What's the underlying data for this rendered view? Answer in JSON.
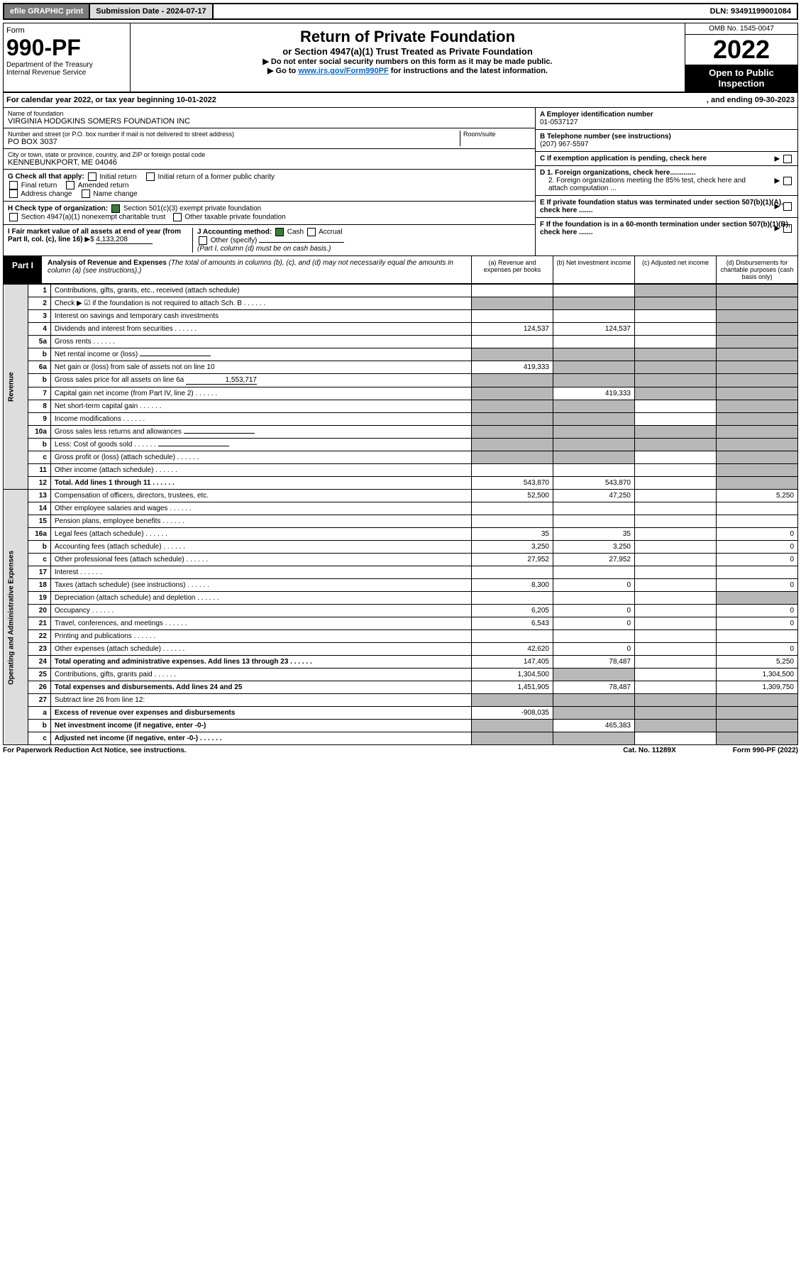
{
  "top": {
    "efile": "efile GRAPHIC print",
    "sub_label": "Submission Date - 2024-07-17",
    "dln": "DLN: 93491199001084"
  },
  "header": {
    "form_word": "Form",
    "form_no": "990-PF",
    "dept": "Department of the Treasury",
    "irs": "Internal Revenue Service",
    "title": "Return of Private Foundation",
    "subtitle": "or Section 4947(a)(1) Trust Treated as Private Foundation",
    "note1": "▶ Do not enter social security numbers on this form as it may be made public.",
    "note2_pre": "▶ Go to ",
    "note2_link": "www.irs.gov/Form990PF",
    "note2_post": " for instructions and the latest information.",
    "omb": "OMB No. 1545-0047",
    "year": "2022",
    "open": "Open to Public Inspection"
  },
  "calyear": {
    "text": "For calendar year 2022, or tax year beginning 10-01-2022",
    "end": ", and ending 09-30-2023"
  },
  "entity": {
    "name_lbl": "Name of foundation",
    "name": "VIRGINIA HODGKINS SOMERS FOUNDATION INC",
    "addr_lbl": "Number and street (or P.O. box number if mail is not delivered to street address)",
    "addr": "PO BOX 3037",
    "room_lbl": "Room/suite",
    "city_lbl": "City or town, state or province, country, and ZIP or foreign postal code",
    "city": "KENNEBUNKPORT, ME  04046",
    "ein_lbl": "A Employer identification number",
    "ein": "01-0537127",
    "phone_lbl": "B Telephone number (see instructions)",
    "phone": "(207) 967-5597",
    "c_lbl": "C If exemption application is pending, check here",
    "d1": "D 1. Foreign organizations, check here.............",
    "d2": "2. Foreign organizations meeting the 85% test, check here and attach computation ...",
    "e_lbl": "E If private foundation status was terminated under section 507(b)(1)(A), check here .......",
    "f_lbl": "F If the foundation is in a 60-month termination under section 507(b)(1)(B), check here ......."
  },
  "checks": {
    "g_lbl": "G Check all that apply:",
    "g_opts": [
      "Initial return",
      "Initial return of a former public charity",
      "Final return",
      "Amended return",
      "Address change",
      "Name change"
    ],
    "h_lbl": "H Check type of organization:",
    "h1": "Section 501(c)(3) exempt private foundation",
    "h2": "Section 4947(a)(1) nonexempt charitable trust",
    "h3": "Other taxable private foundation",
    "i_lbl": "I Fair market value of all assets at end of year (from Part II, col. (c), line 16)",
    "i_val": "4,133,208",
    "j_lbl": "J Accounting method:",
    "j_cash": "Cash",
    "j_acc": "Accrual",
    "j_other": "Other (specify)",
    "j_note": "(Part I, column (d) must be on cash basis.)"
  },
  "part1": {
    "tab": "Part I",
    "title": "Analysis of Revenue and Expenses",
    "note": "(The total of amounts in columns (b), (c), and (d) may not necessarily equal the amounts in column (a) (see instructions).)",
    "cols": [
      "(a) Revenue and expenses per books",
      "(b) Net investment income",
      "(c) Adjusted net income",
      "(d) Disbursements for charitable purposes (cash basis only)"
    ]
  },
  "sections": {
    "rev": "Revenue",
    "exp": "Operating and Administrative Expenses"
  },
  "rows": [
    {
      "n": "1",
      "d": "Contributions, gifts, grants, etc., received (attach schedule)",
      "a": "",
      "b": "",
      "c": "s",
      "e": "s"
    },
    {
      "n": "2",
      "d": "Check ▶ ☑ if the foundation is not required to attach Sch. B",
      "a": "s",
      "b": "s",
      "c": "s",
      "e": "s",
      "dots": 1
    },
    {
      "n": "3",
      "d": "Interest on savings and temporary cash investments",
      "a": "",
      "b": "",
      "c": "",
      "e": "s"
    },
    {
      "n": "4",
      "d": "Dividends and interest from securities",
      "a": "124,537",
      "b": "124,537",
      "c": "",
      "e": "s",
      "dots": 1
    },
    {
      "n": "5a",
      "d": "Gross rents",
      "a": "",
      "b": "",
      "c": "",
      "e": "s",
      "dots": 1
    },
    {
      "n": "b",
      "d": "Net rental income or (loss)",
      "a": "s",
      "b": "s",
      "c": "s",
      "e": "s",
      "inline": 1
    },
    {
      "n": "6a",
      "d": "Net gain or (loss) from sale of assets not on line 10",
      "a": "419,333",
      "b": "s",
      "c": "s",
      "e": "s"
    },
    {
      "n": "b",
      "d": "Gross sales price for all assets on line 6a",
      "a": "s",
      "b": "s",
      "c": "s",
      "e": "s",
      "inline": 1,
      "ival": "1,553,717"
    },
    {
      "n": "7",
      "d": "Capital gain net income (from Part IV, line 2)",
      "a": "s",
      "b": "419,333",
      "c": "s",
      "e": "s",
      "dots": 1
    },
    {
      "n": "8",
      "d": "Net short-term capital gain",
      "a": "s",
      "b": "s",
      "c": "",
      "e": "s",
      "dots": 1
    },
    {
      "n": "9",
      "d": "Income modifications",
      "a": "s",
      "b": "s",
      "c": "",
      "e": "s",
      "dots": 1
    },
    {
      "n": "10a",
      "d": "Gross sales less returns and allowances",
      "a": "s",
      "b": "s",
      "c": "s",
      "e": "s",
      "inline": 1
    },
    {
      "n": "b",
      "d": "Less: Cost of goods sold",
      "a": "s",
      "b": "s",
      "c": "s",
      "e": "s",
      "inline": 1,
      "dots": 1
    },
    {
      "n": "c",
      "d": "Gross profit or (loss) (attach schedule)",
      "a": "s",
      "b": "s",
      "c": "",
      "e": "s",
      "dots": 1
    },
    {
      "n": "11",
      "d": "Other income (attach schedule)",
      "a": "",
      "b": "",
      "c": "",
      "e": "s",
      "dots": 1
    },
    {
      "n": "12",
      "d": "Total. Add lines 1 through 11",
      "a": "543,870",
      "b": "543,870",
      "c": "",
      "e": "s",
      "bold": 1,
      "dots": 1
    },
    {
      "n": "13",
      "d": "Compensation of officers, directors, trustees, etc.",
      "a": "52,500",
      "b": "47,250",
      "c": "",
      "e": "5,250",
      "sec": "exp"
    },
    {
      "n": "14",
      "d": "Other employee salaries and wages",
      "a": "",
      "b": "",
      "c": "",
      "e": "",
      "dots": 1
    },
    {
      "n": "15",
      "d": "Pension plans, employee benefits",
      "a": "",
      "b": "",
      "c": "",
      "e": "",
      "dots": 1
    },
    {
      "n": "16a",
      "d": "Legal fees (attach schedule)",
      "a": "35",
      "b": "35",
      "c": "",
      "e": "0",
      "dots": 1
    },
    {
      "n": "b",
      "d": "Accounting fees (attach schedule)",
      "a": "3,250",
      "b": "3,250",
      "c": "",
      "e": "0",
      "dots": 1
    },
    {
      "n": "c",
      "d": "Other professional fees (attach schedule)",
      "a": "27,952",
      "b": "27,952",
      "c": "",
      "e": "0",
      "dots": 1
    },
    {
      "n": "17",
      "d": "Interest",
      "a": "",
      "b": "",
      "c": "",
      "e": "",
      "dots": 1
    },
    {
      "n": "18",
      "d": "Taxes (attach schedule) (see instructions)",
      "a": "8,300",
      "b": "0",
      "c": "",
      "e": "0",
      "dots": 1
    },
    {
      "n": "19",
      "d": "Depreciation (attach schedule) and depletion",
      "a": "",
      "b": "",
      "c": "",
      "e": "s",
      "dots": 1
    },
    {
      "n": "20",
      "d": "Occupancy",
      "a": "6,205",
      "b": "0",
      "c": "",
      "e": "0",
      "dots": 1
    },
    {
      "n": "21",
      "d": "Travel, conferences, and meetings",
      "a": "6,543",
      "b": "0",
      "c": "",
      "e": "0",
      "dots": 1
    },
    {
      "n": "22",
      "d": "Printing and publications",
      "a": "",
      "b": "",
      "c": "",
      "e": "",
      "dots": 1
    },
    {
      "n": "23",
      "d": "Other expenses (attach schedule)",
      "a": "42,620",
      "b": "0",
      "c": "",
      "e": "0",
      "dots": 1
    },
    {
      "n": "24",
      "d": "Total operating and administrative expenses. Add lines 13 through 23",
      "a": "147,405",
      "b": "78,487",
      "c": "",
      "e": "5,250",
      "bold": 1,
      "dots": 1
    },
    {
      "n": "25",
      "d": "Contributions, gifts, grants paid",
      "a": "1,304,500",
      "b": "s",
      "c": "",
      "e": "1,304,500",
      "dots": 1
    },
    {
      "n": "26",
      "d": "Total expenses and disbursements. Add lines 24 and 25",
      "a": "1,451,905",
      "b": "78,487",
      "c": "",
      "e": "1,309,750",
      "bold": 1
    },
    {
      "n": "27",
      "d": "Subtract line 26 from line 12:",
      "a": "s",
      "b": "s",
      "c": "s",
      "e": "s"
    },
    {
      "n": "a",
      "d": "Excess of revenue over expenses and disbursements",
      "a": "-908,035",
      "b": "s",
      "c": "s",
      "e": "s",
      "bold": 1
    },
    {
      "n": "b",
      "d": "Net investment income (if negative, enter -0-)",
      "a": "s",
      "b": "465,383",
      "c": "s",
      "e": "s",
      "bold": 1
    },
    {
      "n": "c",
      "d": "Adjusted net income (if negative, enter -0-)",
      "a": "s",
      "b": "s",
      "c": "",
      "e": "s",
      "bold": 1,
      "dots": 1
    }
  ],
  "footer": {
    "left": "For Paperwork Reduction Act Notice, see instructions.",
    "mid": "Cat. No. 11289X",
    "right": "Form 990-PF (2022)"
  }
}
